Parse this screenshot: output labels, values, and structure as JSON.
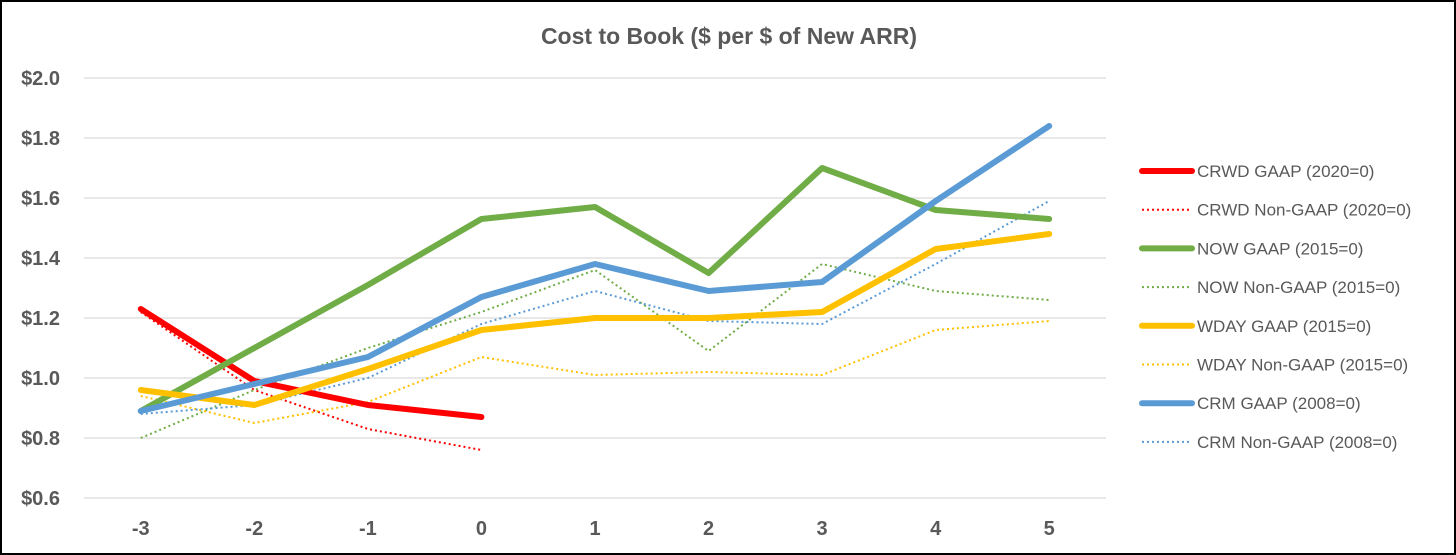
{
  "chart_data": {
    "type": "line",
    "title": "Cost to Book ($ per $ of New ARR)",
    "xlabel": "",
    "ylabel": "",
    "categories": [
      "-3",
      "-2",
      "-1",
      "0",
      "1",
      "2",
      "3",
      "4",
      "5"
    ],
    "ylim": [
      0.6,
      2.0
    ],
    "yticks": [
      "$0.6",
      "$0.8",
      "$1.0",
      "$1.2",
      "$1.4",
      "$1.6",
      "$1.8",
      "$2.0"
    ],
    "grid": true,
    "legend_position": "right",
    "series": [
      {
        "name": "CRWD GAAP (2020=0)",
        "color": "#ff0000",
        "style": "solid",
        "values": [
          1.23,
          0.99,
          0.91,
          0.87,
          null,
          null,
          null,
          null,
          null
        ]
      },
      {
        "name": "CRWD Non-GAAP (2020=0)",
        "color": "#ff0000",
        "style": "dotted",
        "values": [
          1.22,
          0.96,
          0.83,
          0.76,
          null,
          null,
          null,
          null,
          null
        ]
      },
      {
        "name": "NOW GAAP (2015=0)",
        "color": "#70ad47",
        "style": "solid",
        "values": [
          0.89,
          1.1,
          1.31,
          1.53,
          1.57,
          1.35,
          1.7,
          1.56,
          1.53
        ]
      },
      {
        "name": "NOW Non-GAAP (2015=0)",
        "color": "#70ad47",
        "style": "dotted",
        "values": [
          0.8,
          0.96,
          1.1,
          1.22,
          1.36,
          1.09,
          1.38,
          1.29,
          1.26
        ]
      },
      {
        "name": "WDAY GAAP (2015=0)",
        "color": "#ffc000",
        "style": "solid",
        "values": [
          0.96,
          0.91,
          1.03,
          1.16,
          1.2,
          1.2,
          1.22,
          1.43,
          1.48
        ]
      },
      {
        "name": "WDAY Non-GAAP (2015=0)",
        "color": "#ffc000",
        "style": "dotted",
        "values": [
          0.94,
          0.85,
          0.92,
          1.07,
          1.01,
          1.02,
          1.01,
          1.16,
          1.19
        ]
      },
      {
        "name": "CRM GAAP (2008=0)",
        "color": "#5b9bd5",
        "style": "solid",
        "values": [
          0.89,
          0.98,
          1.07,
          1.27,
          1.38,
          1.29,
          1.32,
          1.59,
          1.84
        ]
      },
      {
        "name": "CRM Non-GAAP (2008=0)",
        "color": "#5b9bd5",
        "style": "dotted",
        "values": [
          0.88,
          0.91,
          1.0,
          1.18,
          1.29,
          1.19,
          1.18,
          1.38,
          1.59
        ]
      }
    ]
  }
}
